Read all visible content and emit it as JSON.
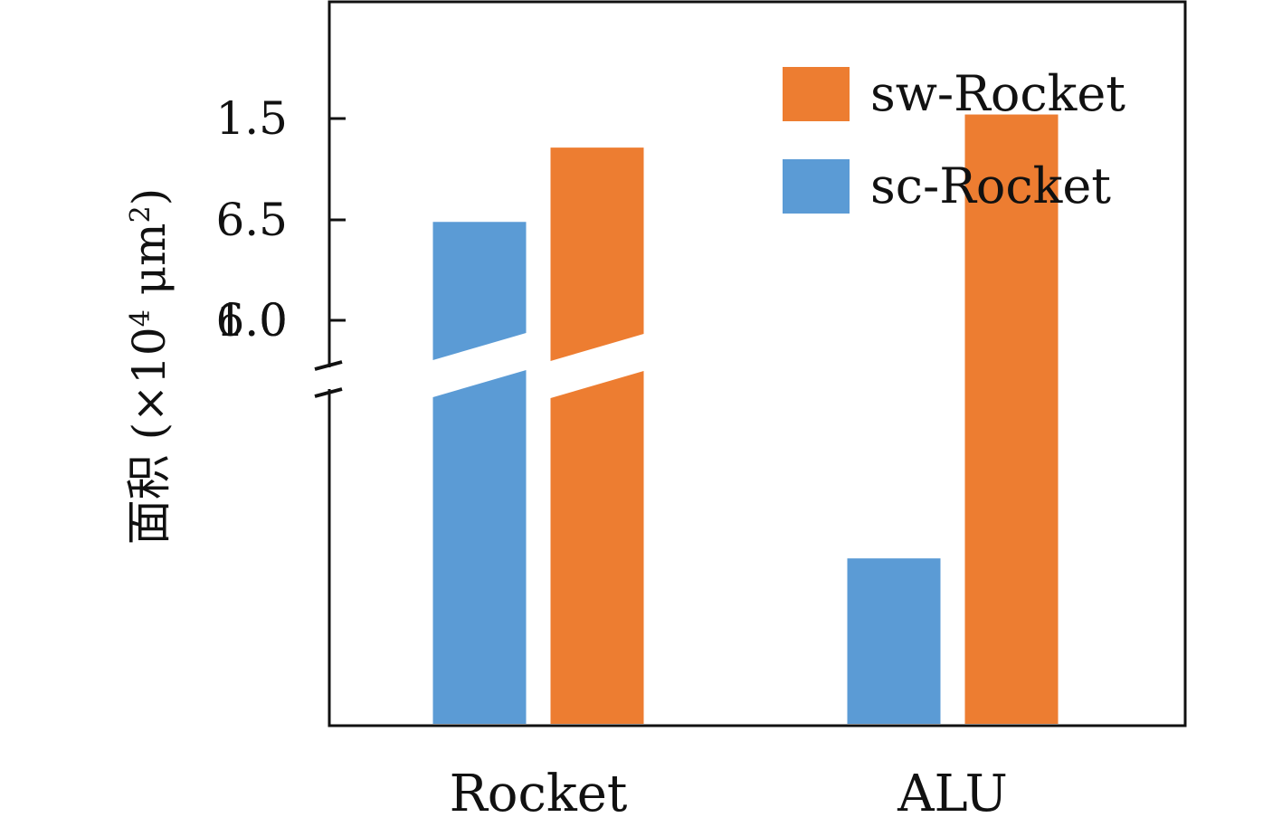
{
  "chart_data": {
    "type": "bar",
    "categories": [
      "Rocket",
      "ALU"
    ],
    "series": [
      {
        "name": "sc-Rocket",
        "color": "#5b9bd5",
        "values": [
          6.49,
          0.41
        ]
      },
      {
        "name": "sw-Rocket",
        "color": "#ed7d31",
        "values": [
          6.86,
          1.51
        ]
      }
    ],
    "ylabel": {
      "prefix": "面积 (×10",
      "exp1": "4",
      "mid": " μm",
      "exp2": "2",
      "suffix": ")"
    },
    "y_axis": {
      "broken": true,
      "lower_segment": [
        0,
        1.7
      ],
      "upper_segment": [
        5.8,
        7.4
      ],
      "ticks": [
        {
          "value": 1.0,
          "label": "1.0"
        },
        {
          "value": 1.5,
          "label": "1.5"
        },
        {
          "value": 6.0,
          "label": "6.0"
        },
        {
          "value": 6.5,
          "label": "6.5"
        }
      ]
    },
    "legend": {
      "placement": "top-right",
      "order": [
        "sw-Rocket",
        "sc-Rocket"
      ]
    },
    "grid": false
  }
}
